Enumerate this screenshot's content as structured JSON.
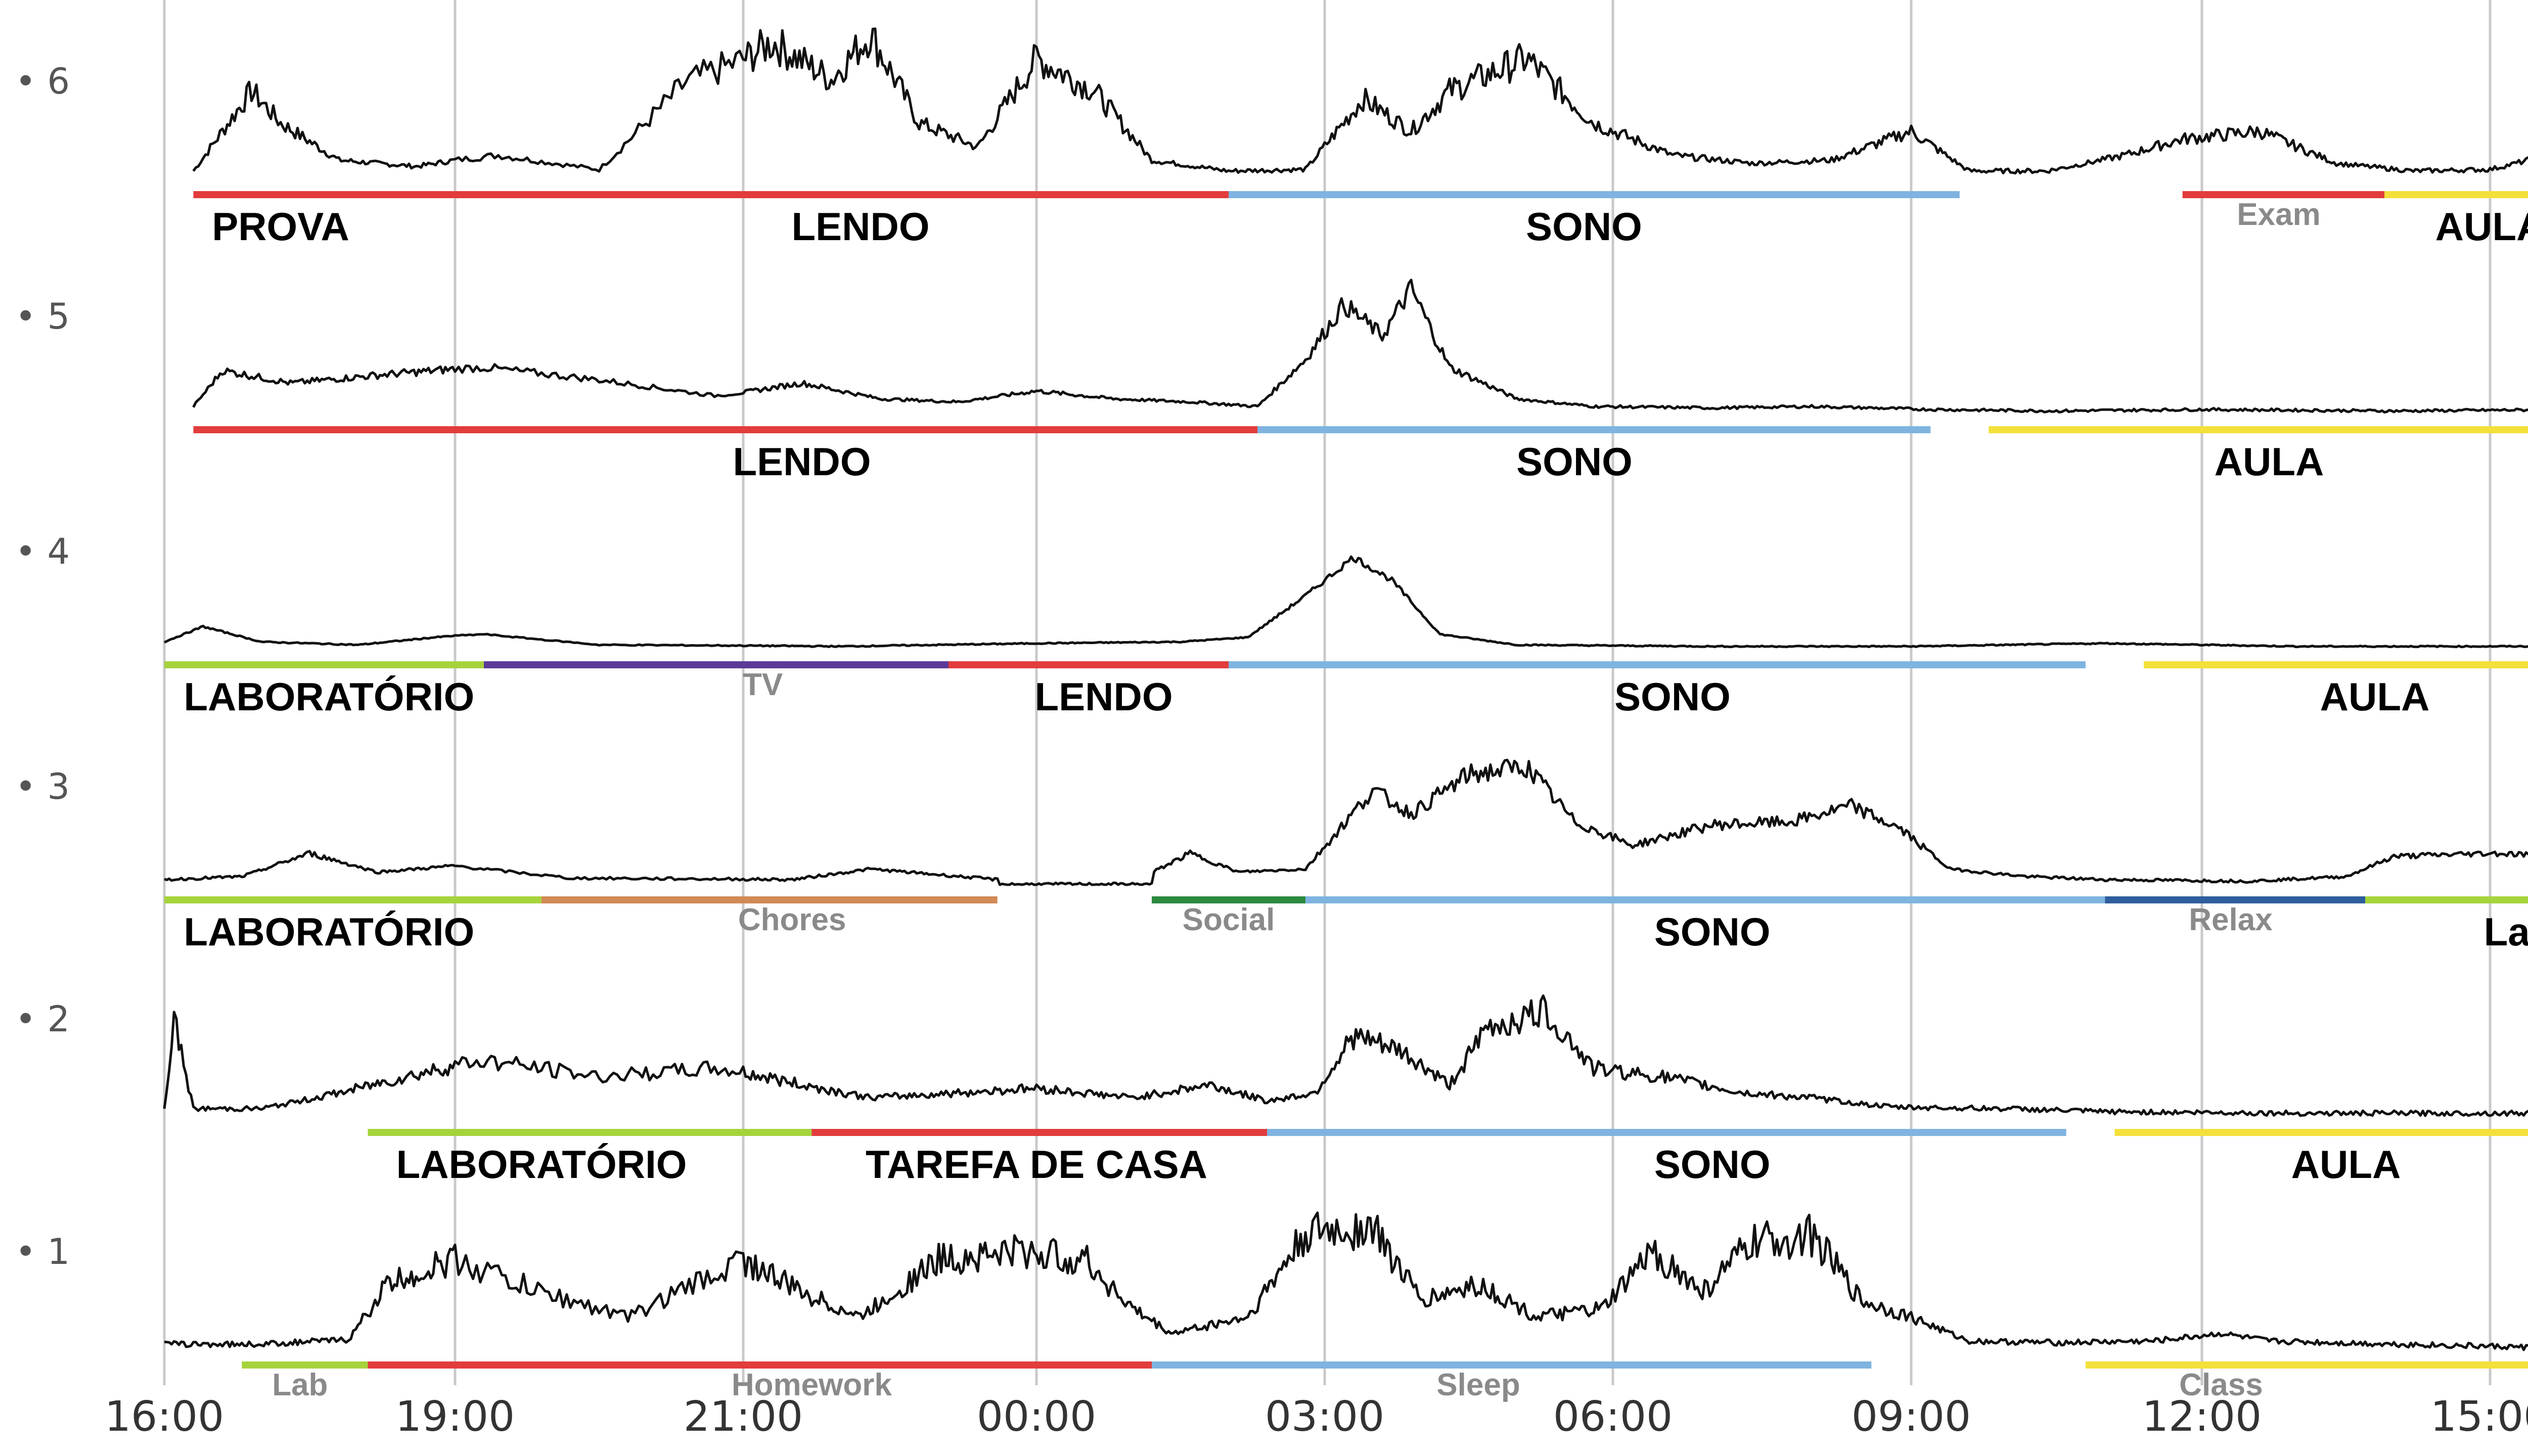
{
  "chart_data": {
    "type": "line",
    "title": "",
    "xlabel": "",
    "ylabel": "",
    "x_ticks": [
      "16:00",
      "19:00",
      "21:00",
      "00:00",
      "03:00",
      "06:00",
      "09:00",
      "12:00",
      "15:00"
    ],
    "y_ticks": [
      "1",
      "2",
      "3",
      "4",
      "5",
      "6"
    ],
    "hours_range": [
      0,
      24
    ],
    "grid": true,
    "trace_color": "#111111",
    "activity_colors": {
      "red": "#e23c3c",
      "blue": "#7fb4e0",
      "yellow": "#f3e03a",
      "lime": "#a6d33c",
      "purple": "#5b3a98",
      "orange": "#d08a55",
      "green": "#2b8a3e",
      "navy": "#2d5e9e"
    },
    "days": [
      {
        "day": "6",
        "segments": [
          {
            "start": 0.3,
            "end": 10.0,
            "color": "red"
          },
          {
            "start": 10.0,
            "end": 17.5,
            "color": "blue"
          },
          {
            "start": 19.8,
            "end": 21.9,
            "color": "red"
          },
          {
            "start": 21.9,
            "end": 24.0,
            "color": "yellow"
          }
        ],
        "labels": [
          {
            "text": "PROVA",
            "x": 1.2,
            "bold": true
          },
          {
            "text": "LENDO",
            "x": 6.2,
            "bold": true
          },
          {
            "text": "SONO",
            "x": 13.7,
            "bold": true
          },
          {
            "text": "Exam",
            "x": 20.8,
            "bold": false
          },
          {
            "text": "AULA",
            "x": 23.0,
            "bold": true
          }
        ],
        "profile": [
          [
            0.3,
            0.05
          ],
          [
            0.9,
            0.55
          ],
          [
            1.2,
            0.35
          ],
          [
            1.8,
            0.12
          ],
          [
            2.6,
            0.08
          ],
          [
            3.3,
            0.15
          ],
          [
            4.0,
            0.06
          ],
          [
            4.6,
            0.6
          ],
          [
            5.3,
            0.85
          ],
          [
            5.9,
            0.62
          ],
          [
            6.3,
            0.9
          ],
          [
            6.8,
            0.35
          ],
          [
            7.4,
            0.2
          ],
          [
            8.0,
            0.75
          ],
          [
            8.6,
            0.55
          ],
          [
            9.2,
            0.12
          ],
          [
            10.0,
            0.05
          ],
          [
            10.8,
            0.06
          ],
          [
            11.4,
            0.5
          ],
          [
            11.9,
            0.3
          ],
          [
            12.3,
            0.55
          ],
          [
            13.1,
            0.75
          ],
          [
            13.8,
            0.35
          ],
          [
            14.6,
            0.15
          ],
          [
            15.4,
            0.1
          ],
          [
            16.2,
            0.12
          ],
          [
            17.0,
            0.3
          ],
          [
            17.6,
            0.05
          ],
          [
            18.4,
            0.05
          ],
          [
            19.2,
            0.15
          ],
          [
            19.8,
            0.25
          ],
          [
            20.6,
            0.3
          ],
          [
            21.4,
            0.1
          ],
          [
            22.2,
            0.05
          ],
          [
            23.0,
            0.06
          ],
          [
            23.6,
            0.15
          ],
          [
            24.0,
            0.05
          ]
        ],
        "noise": 0.2
      },
      {
        "day": "5",
        "segments": [
          {
            "start": 0.3,
            "end": 10.3,
            "color": "red"
          },
          {
            "start": 10.3,
            "end": 17.2,
            "color": "blue"
          },
          {
            "start": 17.8,
            "end": 24.0,
            "color": "yellow"
          }
        ],
        "labels": [
          {
            "text": "LENDO",
            "x": 5.6,
            "bold": true
          },
          {
            "text": "SONO",
            "x": 13.6,
            "bold": true
          },
          {
            "text": "AULA",
            "x": 20.7,
            "bold": true
          }
        ],
        "profile": [
          [
            0.3,
            0.05
          ],
          [
            0.6,
            0.28
          ],
          [
            1.3,
            0.2
          ],
          [
            2.2,
            0.25
          ],
          [
            3.2,
            0.3
          ],
          [
            4.0,
            0.22
          ],
          [
            4.8,
            0.12
          ],
          [
            5.6,
            0.2
          ],
          [
            6.4,
            0.1
          ],
          [
            7.2,
            0.08
          ],
          [
            8.0,
            0.15
          ],
          [
            8.8,
            0.1
          ],
          [
            9.6,
            0.08
          ],
          [
            10.3,
            0.05
          ],
          [
            10.8,
            0.35
          ],
          [
            11.2,
            0.7
          ],
          [
            11.6,
            0.5
          ],
          [
            11.9,
            0.8
          ],
          [
            12.3,
            0.3
          ],
          [
            13.0,
            0.1
          ],
          [
            13.8,
            0.05
          ],
          [
            15.0,
            0.04
          ],
          [
            16.0,
            0.05
          ],
          [
            17.2,
            0.03
          ],
          [
            18.5,
            0.02
          ],
          [
            20.0,
            0.03
          ],
          [
            22.0,
            0.02
          ],
          [
            24.0,
            0.03
          ]
        ],
        "noise": 0.12
      },
      {
        "day": "4",
        "segments": [
          {
            "start": 0.0,
            "end": 3.2,
            "color": "lime"
          },
          {
            "start": 3.2,
            "end": 7.1,
            "color": "purple"
          },
          {
            "start": 7.1,
            "end": 10.0,
            "color": "red"
          },
          {
            "start": 10.0,
            "end": 18.8,
            "color": "blue"
          },
          {
            "start": 19.4,
            "end": 23.9,
            "color": "yellow"
          }
        ],
        "labels": [
          {
            "text": "LABORATÓRIO",
            "x": 1.7,
            "bold": true
          },
          {
            "text": "TV",
            "x": 5.2,
            "bold": false
          },
          {
            "text": "LENDO",
            "x": 8.7,
            "bold": true
          },
          {
            "text": "SONO",
            "x": 14.6,
            "bold": true
          },
          {
            "text": "AULA",
            "x": 21.8,
            "bold": true
          }
        ],
        "profile": [
          [
            0.0,
            0.05
          ],
          [
            0.4,
            0.15
          ],
          [
            1.0,
            0.05
          ],
          [
            2.0,
            0.03
          ],
          [
            2.8,
            0.08
          ],
          [
            3.2,
            0.1
          ],
          [
            4.0,
            0.03
          ],
          [
            6.0,
            0.02
          ],
          [
            8.0,
            0.04
          ],
          [
            9.5,
            0.05
          ],
          [
            10.2,
            0.08
          ],
          [
            10.8,
            0.35
          ],
          [
            11.3,
            0.6
          ],
          [
            11.7,
            0.45
          ],
          [
            12.2,
            0.1
          ],
          [
            13.0,
            0.03
          ],
          [
            15.0,
            0.02
          ],
          [
            17.0,
            0.02
          ],
          [
            19.0,
            0.04
          ],
          [
            21.0,
            0.02
          ],
          [
            23.9,
            0.02
          ]
        ],
        "noise": 0.05
      },
      {
        "day": "3",
        "segments": [
          {
            "start": 0.0,
            "end": 3.6,
            "color": "lime"
          },
          {
            "start": 3.6,
            "end": 7.6,
            "color": "orange"
          },
          {
            "start": 9.2,
            "end": 10.8,
            "color": "green"
          },
          {
            "start": 10.8,
            "end": 19.0,
            "color": "blue"
          },
          {
            "start": 19.0,
            "end": 21.7,
            "color": "navy"
          },
          {
            "start": 21.7,
            "end": 24.0,
            "color": "lime"
          }
        ],
        "labels": [
          {
            "text": "LABORATÓRIO",
            "x": 1.7,
            "bold": true
          },
          {
            "text": "Chores",
            "x": 5.5,
            "bold": false
          },
          {
            "text": "Social",
            "x": 10.0,
            "bold": false
          },
          {
            "text": "SONO",
            "x": 15.0,
            "bold": true
          },
          {
            "text": "Relax",
            "x": 20.3,
            "bold": false
          },
          {
            "text": "Lab",
            "x": 23.3,
            "bold": true
          }
        ],
        "profile": [
          [
            0.0,
            0.03
          ],
          [
            0.8,
            0.05
          ],
          [
            1.5,
            0.2
          ],
          [
            2.2,
            0.08
          ],
          [
            3.0,
            0.12
          ],
          [
            3.8,
            0.04
          ],
          [
            5.5,
            0.03
          ],
          [
            6.3,
            0.1
          ],
          [
            7.6,
            0.03
          ],
          [
            7.61,
            0.0
          ],
          [
            9.2,
            0.0
          ],
          [
            9.21,
            0.08
          ],
          [
            9.6,
            0.2
          ],
          [
            10.1,
            0.08
          ],
          [
            10.8,
            0.1
          ],
          [
            11.5,
            0.6
          ],
          [
            11.9,
            0.45
          ],
          [
            12.5,
            0.7
          ],
          [
            13.1,
            0.75
          ],
          [
            13.6,
            0.4
          ],
          [
            14.2,
            0.25
          ],
          [
            15.0,
            0.38
          ],
          [
            15.8,
            0.4
          ],
          [
            16.4,
            0.5
          ],
          [
            16.9,
            0.35
          ],
          [
            17.4,
            0.1
          ],
          [
            18.2,
            0.05
          ],
          [
            19.0,
            0.03
          ],
          [
            20.5,
            0.02
          ],
          [
            21.5,
            0.05
          ],
          [
            22.0,
            0.18
          ],
          [
            23.0,
            0.2
          ],
          [
            24.0,
            0.18
          ]
        ],
        "noise": 0.12
      },
      {
        "day": "2",
        "segments": [
          {
            "start": 2.1,
            "end": 5.7,
            "color": "lime"
          },
          {
            "start": 5.7,
            "end": 10.4,
            "color": "red"
          },
          {
            "start": 10.4,
            "end": 18.6,
            "color": "blue"
          },
          {
            "start": 19.1,
            "end": 23.6,
            "color": "yellow"
          }
        ],
        "labels": [
          {
            "text": "LABORATÓRIO",
            "x": 3.6,
            "bold": true
          },
          {
            "text": "TAREFA DE CASA",
            "x": 8.0,
            "bold": true
          },
          {
            "text": "SONO",
            "x": 15.0,
            "bold": true
          },
          {
            "text": "AULA",
            "x": 21.5,
            "bold": true
          }
        ],
        "profile": [
          [
            0.0,
            0.05
          ],
          [
            0.1,
            0.6
          ],
          [
            0.3,
            0.05
          ],
          [
            1.0,
            0.05
          ],
          [
            1.8,
            0.15
          ],
          [
            2.5,
            0.25
          ],
          [
            3.2,
            0.35
          ],
          [
            4.0,
            0.25
          ],
          [
            4.8,
            0.3
          ],
          [
            5.6,
            0.2
          ],
          [
            6.3,
            0.12
          ],
          [
            7.2,
            0.15
          ],
          [
            8.0,
            0.18
          ],
          [
            9.0,
            0.12
          ],
          [
            9.8,
            0.2
          ],
          [
            10.4,
            0.1
          ],
          [
            10.9,
            0.15
          ],
          [
            11.3,
            0.5
          ],
          [
            11.8,
            0.4
          ],
          [
            12.3,
            0.2
          ],
          [
            12.7,
            0.55
          ],
          [
            13.3,
            0.65
          ],
          [
            13.8,
            0.3
          ],
          [
            14.5,
            0.25
          ],
          [
            15.3,
            0.15
          ],
          [
            16.0,
            0.12
          ],
          [
            16.8,
            0.06
          ],
          [
            18.0,
            0.05
          ],
          [
            19.0,
            0.03
          ],
          [
            21.0,
            0.02
          ],
          [
            23.6,
            0.02
          ]
        ],
        "noise": 0.22
      },
      {
        "day": "1",
        "segments": [
          {
            "start": 0.8,
            "end": 2.1,
            "color": "lime"
          },
          {
            "start": 2.1,
            "end": 9.2,
            "color": "red"
          },
          {
            "start": 9.2,
            "end": 16.6,
            "color": "blue"
          },
          {
            "start": 18.8,
            "end": 23.9,
            "color": "yellow"
          }
        ],
        "labels": [
          {
            "text": "Lab",
            "x": 1.4,
            "bold": false
          },
          {
            "text": "Homework",
            "x": 5.7,
            "bold": false
          },
          {
            "text": "Sleep",
            "x": 12.6,
            "bold": false
          },
          {
            "text": "Class",
            "x": 20.2,
            "bold": false
          }
        ],
        "profile": [
          [
            0.0,
            0.03
          ],
          [
            1.0,
            0.03
          ],
          [
            1.9,
            0.06
          ],
          [
            2.3,
            0.4
          ],
          [
            3.0,
            0.55
          ],
          [
            3.6,
            0.35
          ],
          [
            4.2,
            0.2
          ],
          [
            5.0,
            0.55
          ],
          [
            5.6,
            0.35
          ],
          [
            6.2,
            0.2
          ],
          [
            7.0,
            0.55
          ],
          [
            7.8,
            0.6
          ],
          [
            8.5,
            0.55
          ],
          [
            9.0,
            0.25
          ],
          [
            9.4,
            0.1
          ],
          [
            10.2,
            0.2
          ],
          [
            10.8,
            0.7
          ],
          [
            11.5,
            0.75
          ],
          [
            12.0,
            0.3
          ],
          [
            12.6,
            0.4
          ],
          [
            13.2,
            0.2
          ],
          [
            13.9,
            0.25
          ],
          [
            14.4,
            0.6
          ],
          [
            14.9,
            0.35
          ],
          [
            15.4,
            0.65
          ],
          [
            16.0,
            0.7
          ],
          [
            16.5,
            0.3
          ],
          [
            17.0,
            0.2
          ],
          [
            17.6,
            0.05
          ],
          [
            18.5,
            0.04
          ],
          [
            19.5,
            0.05
          ],
          [
            20.2,
            0.1
          ],
          [
            20.7,
            0.05
          ],
          [
            24.0,
            0.0
          ]
        ],
        "noise": 0.25
      }
    ]
  }
}
